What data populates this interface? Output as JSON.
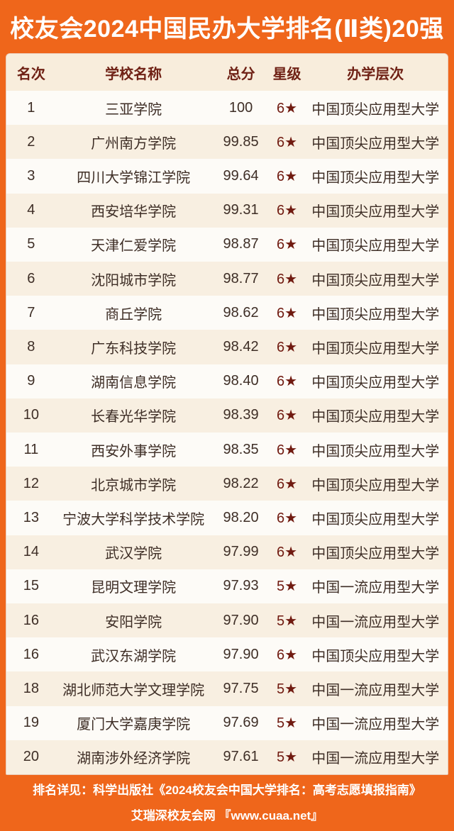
{
  "title": "校友会2024中国民办大学排名(Ⅱ类)20强",
  "colors": {
    "orange": "#ef661b",
    "header_text": "#6f2115",
    "body_text": "#3e2e26",
    "star_color": "#701a10",
    "panel_bg": "#fdfbf7",
    "stripe_bg": "#f8efe1",
    "header_row_bg": "#f8eddc"
  },
  "chart_data": {
    "type": "table",
    "title": "校友会2024中国民办大学排名(Ⅱ类)20强",
    "columns": [
      "名次",
      "学校名称",
      "总分",
      "星级",
      "办学层次"
    ],
    "rows": [
      [
        "1",
        "三亚学院",
        "100",
        "6★",
        "中国顶尖应用型大学"
      ],
      [
        "2",
        "广州南方学院",
        "99.85",
        "6★",
        "中国顶尖应用型大学"
      ],
      [
        "3",
        "四川大学锦江学院",
        "99.64",
        "6★",
        "中国顶尖应用型大学"
      ],
      [
        "4",
        "西安培华学院",
        "99.31",
        "6★",
        "中国顶尖应用型大学"
      ],
      [
        "5",
        "天津仁爱学院",
        "98.87",
        "6★",
        "中国顶尖应用型大学"
      ],
      [
        "6",
        "沈阳城市学院",
        "98.77",
        "6★",
        "中国顶尖应用型大学"
      ],
      [
        "7",
        "商丘学院",
        "98.62",
        "6★",
        "中国顶尖应用型大学"
      ],
      [
        "8",
        "广东科技学院",
        "98.42",
        "6★",
        "中国顶尖应用型大学"
      ],
      [
        "9",
        "湖南信息学院",
        "98.40",
        "6★",
        "中国顶尖应用型大学"
      ],
      [
        "10",
        "长春光华学院",
        "98.39",
        "6★",
        "中国顶尖应用型大学"
      ],
      [
        "11",
        "西安外事学院",
        "98.35",
        "6★",
        "中国顶尖应用型大学"
      ],
      [
        "12",
        "北京城市学院",
        "98.22",
        "6★",
        "中国顶尖应用型大学"
      ],
      [
        "13",
        "宁波大学科学技术学院",
        "98.20",
        "6★",
        "中国顶尖应用型大学"
      ],
      [
        "14",
        "武汉学院",
        "97.99",
        "6★",
        "中国顶尖应用型大学"
      ],
      [
        "15",
        "昆明文理学院",
        "97.93",
        "5★",
        "中国一流应用型大学"
      ],
      [
        "16",
        "安阳学院",
        "97.90",
        "5★",
        "中国一流应用型大学"
      ],
      [
        "16",
        "武汉东湖学院",
        "97.90",
        "6★",
        "中国顶尖应用型大学"
      ],
      [
        "18",
        "湖北师范大学文理学院",
        "97.75",
        "5★",
        "中国一流应用型大学"
      ],
      [
        "19",
        "厦门大学嘉庚学院",
        "97.69",
        "5★",
        "中国一流应用型大学"
      ],
      [
        "20",
        "湖南涉外经济学院",
        "97.61",
        "5★",
        "中国一流应用型大学"
      ]
    ]
  },
  "footer": {
    "line1": "排名详见：科学出版社《2024校友会中国大学排名：高考志愿填报指南》",
    "line2": "艾瑞深校友会网 『www.cuaa.net』"
  }
}
